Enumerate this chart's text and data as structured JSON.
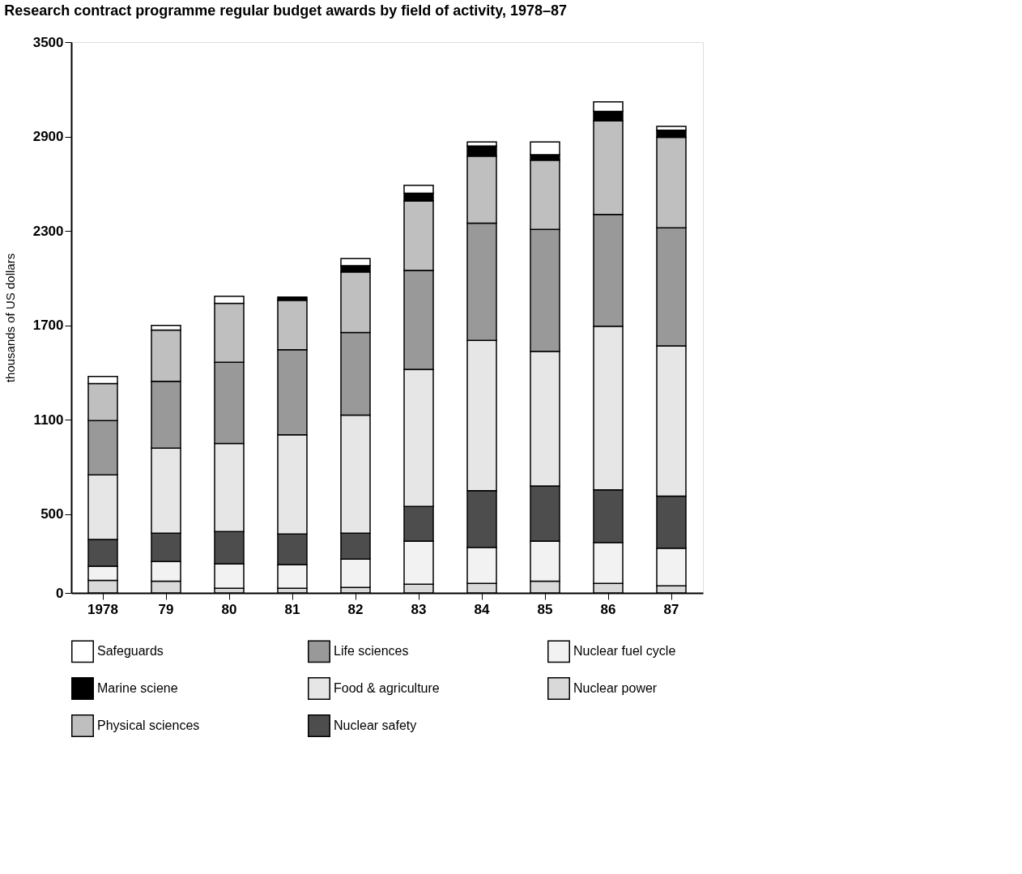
{
  "chart_data": {
    "type": "bar",
    "stacked": true,
    "title": "Research contract programme regular budget awards by field of activity, 1978–87",
    "ylabel": "thousands of US dollars",
    "categories": [
      "1978",
      "79",
      "80",
      "81",
      "82",
      "83",
      "84",
      "85",
      "86",
      "87"
    ],
    "ylim": [
      0,
      3500
    ],
    "yticks": [
      0,
      500,
      1100,
      1700,
      2300,
      2900,
      3500
    ],
    "grid": false,
    "legend": "bottom",
    "series": [
      {
        "name": "Nuclear power",
        "color": "#d9d9d9",
        "values": [
          80,
          75,
          30,
          30,
          35,
          55,
          60,
          75,
          60,
          45
        ]
      },
      {
        "name": "Nuclear fuel cycle",
        "color": "#f2f2f2",
        "values": [
          90,
          125,
          155,
          150,
          180,
          275,
          230,
          255,
          260,
          240
        ]
      },
      {
        "name": "Nuclear safety",
        "color": "#4d4d4d",
        "values": [
          170,
          180,
          205,
          195,
          165,
          220,
          360,
          350,
          335,
          330
        ]
      },
      {
        "name": "Food & agriculture",
        "color": "#e6e6e6",
        "values": [
          410,
          540,
          560,
          630,
          750,
          870,
          955,
          855,
          1040,
          955
        ]
      },
      {
        "name": "Life sciences",
        "color": "#999999",
        "values": [
          345,
          425,
          515,
          540,
          525,
          630,
          745,
          775,
          710,
          750
        ]
      },
      {
        "name": "Physical sciences",
        "color": "#bfbfbf",
        "values": [
          235,
          325,
          375,
          315,
          385,
          440,
          425,
          440,
          595,
          575
        ]
      },
      {
        "name": "Marine sciene",
        "color": "#000000",
        "values": [
          0,
          0,
          0,
          20,
          40,
          50,
          65,
          35,
          60,
          45
        ]
      },
      {
        "name": "Safeguards",
        "color": "#ffffff",
        "values": [
          45,
          30,
          45,
          0,
          45,
          50,
          25,
          80,
          60,
          25
        ]
      }
    ]
  }
}
